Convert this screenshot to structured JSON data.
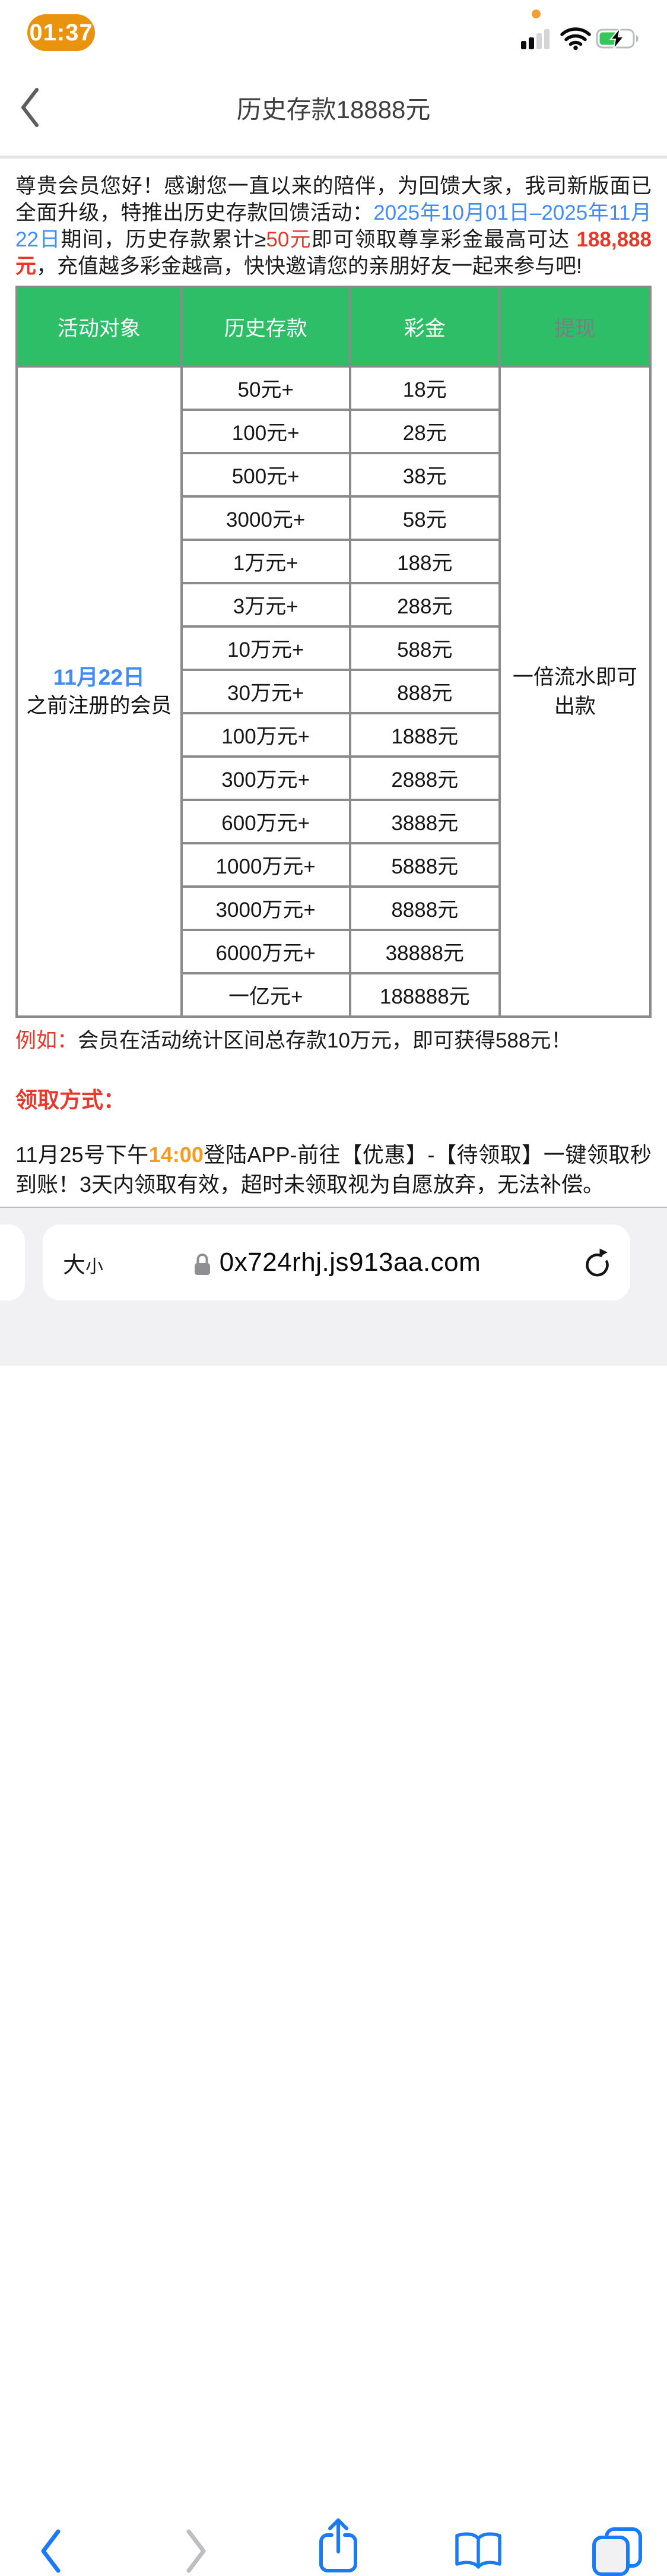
{
  "palette": {
    "blue": "#3f8cf3",
    "red": "#e7392b",
    "orange": "#f59b22",
    "green_header": "#2fbe68",
    "header_muted": "#7d7d85",
    "gray_text": "#9b9b9b",
    "border_gray": "#8b8b8b",
    "separator": "#e3e3e3",
    "ios_blue": "#1b7bf7",
    "toolbar_gray": "#bdbdc2",
    "battery_green": "#35c759",
    "time_pill_orange": "#e9930f",
    "mic_dot_orange": "#f0a132",
    "bottombar_bg": "#f1f1f3"
  },
  "status_bar": {
    "time": "01:37",
    "cellular_bars_filled": 2,
    "cellular_bars_total": 4,
    "wifi_on": true,
    "battery_charging": true,
    "battery_fill_percent": 58
  },
  "nav": {
    "title": "历史存款18888元"
  },
  "intro": {
    "segments": [
      {
        "text": "尊贵会员您好！感谢您一直以来的陪伴，为回馈大家，我司新版面已全面升级，特推出历史存款回馈活动："
      },
      {
        "text": "2025年10月01日–2025年11月22日",
        "color": "blue"
      },
      {
        "text": "期间，历史存款累计≥"
      },
      {
        "text": "50元",
        "color": "red"
      },
      {
        "text": "即可领取尊享彩金最高可达 "
      },
      {
        "text": "188,888元",
        "color": "red",
        "bold": true
      },
      {
        "text": "，充值越多彩金越高，快快邀请您的亲朋好友一起来参与吧!"
      }
    ]
  },
  "table": {
    "headers": [
      {
        "label": "活动对象"
      },
      {
        "label": "历史存款"
      },
      {
        "label": "彩金"
      },
      {
        "label": "提现",
        "muted": true
      }
    ],
    "audience": {
      "line1": "11月22日",
      "line2": "之前注册的会员"
    },
    "withdraw": "一倍流水即可出款",
    "rows": [
      {
        "deposit": "50元+",
        "bonus": "18元"
      },
      {
        "deposit": "100元+",
        "bonus": "28元"
      },
      {
        "deposit": "500元+",
        "bonus": "38元"
      },
      {
        "deposit": "3000元+",
        "bonus": "58元"
      },
      {
        "deposit": "1万元+",
        "bonus": "188元"
      },
      {
        "deposit": "3万元+",
        "bonus": "288元"
      },
      {
        "deposit": "10万元+",
        "bonus": "588元"
      },
      {
        "deposit": "30万元+",
        "bonus": "888元"
      },
      {
        "deposit": "100万元+",
        "bonus": "1888元"
      },
      {
        "deposit": "300万元+",
        "bonus": "2888元"
      },
      {
        "deposit": "600万元+",
        "bonus": "3888元"
      },
      {
        "deposit": "1000万元+",
        "bonus": "5888元"
      },
      {
        "deposit": "3000万元+",
        "bonus": "8888元"
      },
      {
        "deposit": "6000万元+",
        "bonus": "38888元"
      },
      {
        "deposit": "一亿元+",
        "bonus": "188888元"
      }
    ]
  },
  "example": {
    "segments": [
      {
        "text": "例如：",
        "color": "red"
      },
      {
        "text": "会员在活动统计区间总存款10万元，即可获得588元！"
      }
    ]
  },
  "claim": {
    "heading": "领取方式：",
    "segments": [
      {
        "text": "11月25号下午"
      },
      {
        "text": "14:00",
        "color": "orange",
        "bold": true
      },
      {
        "text": "登陆APP-前往【优惠】-【待领取】一键领取秒到账！3天内领取有效，超时未领取视为自愿放弃，无法补偿。"
      }
    ]
  },
  "browser": {
    "font_size_label": {
      "big": "大",
      "small": "小"
    },
    "url": "0x724rhj.js913aa.com"
  }
}
